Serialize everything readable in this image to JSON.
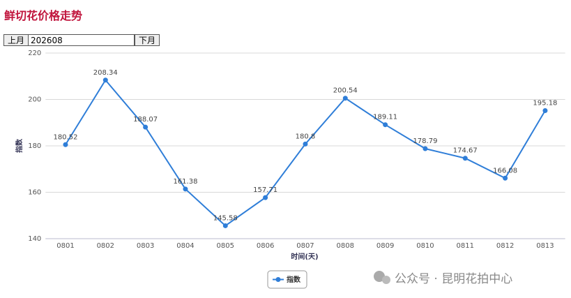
{
  "header": {
    "title": "鲜切花价格走势",
    "prev_button": "上月",
    "month": "202608",
    "next_button": "下月"
  },
  "watermark": "公众号 · 昆明花拍中心",
  "chart_data": {
    "type": "line",
    "x_label": "时间(天)",
    "y_label": "指数",
    "categories": [
      "0801",
      "0802",
      "0803",
      "0804",
      "0805",
      "0806",
      "0807",
      "0808",
      "0809",
      "0810",
      "0811",
      "0812",
      "0813"
    ],
    "series": [
      {
        "name": "指数",
        "color": "#2f7ed8",
        "values": [
          180.52,
          208.34,
          188.07,
          161.38,
          145.58,
          157.71,
          180.8,
          200.54,
          189.11,
          178.79,
          174.67,
          166.08,
          195.18
        ]
      }
    ],
    "ylim": [
      140,
      220
    ],
    "yticks": [
      140,
      160,
      180,
      200,
      220
    ],
    "grid": true,
    "legend": "bottom"
  }
}
